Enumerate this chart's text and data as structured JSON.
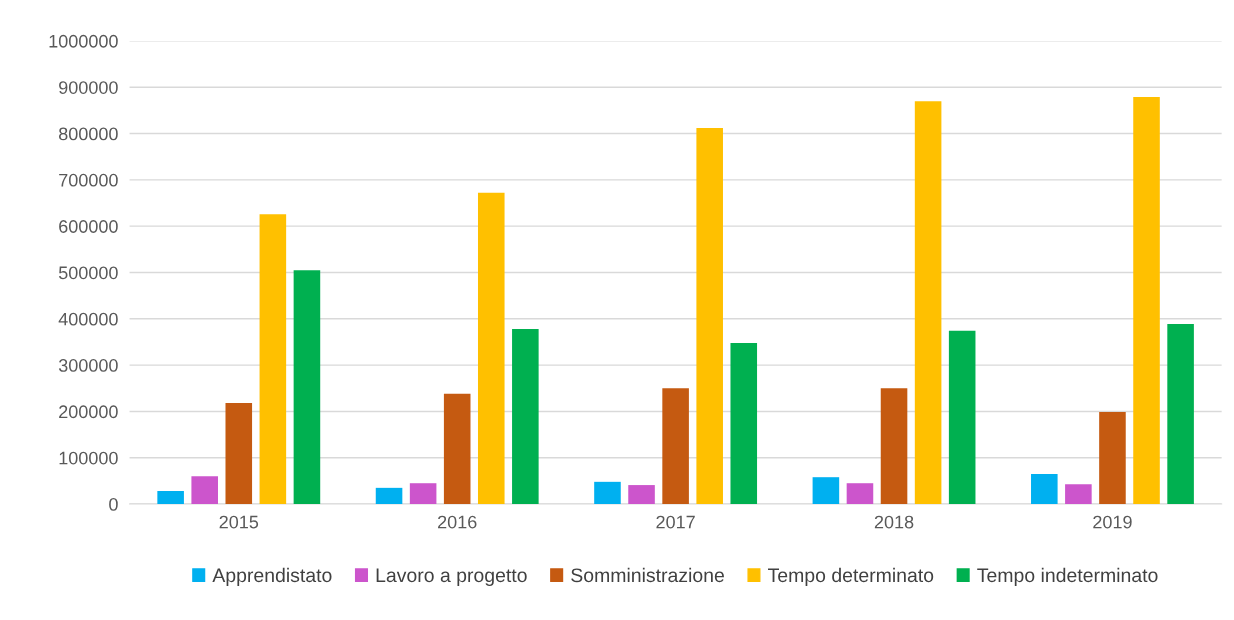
{
  "chart_data": {
    "type": "bar",
    "categories": [
      "2015",
      "2016",
      "2017",
      "2018",
      "2019"
    ],
    "series": [
      {
        "name": "Apprendistato",
        "color": "#00b0f0",
        "values": [
          28000,
          35000,
          48000,
          58000,
          65000
        ]
      },
      {
        "name": "Lavoro a progetto",
        "color": "#cc55cc",
        "values": [
          60000,
          45000,
          41000,
          45000,
          43000
        ]
      },
      {
        "name": "Somministrazione",
        "color": "#c55a11",
        "values": [
          218000,
          238000,
          250000,
          250000,
          199000
        ]
      },
      {
        "name": "Tempo determinato",
        "color": "#ffc000",
        "values": [
          626000,
          672000,
          812000,
          870000,
          879000
        ]
      },
      {
        "name": "Tempo indeterminato",
        "color": "#00b050",
        "values": [
          505000,
          378000,
          348000,
          374000,
          389000
        ]
      }
    ],
    "ylim": [
      0,
      1000000
    ],
    "yticks": [
      0,
      100000,
      200000,
      300000,
      400000,
      500000,
      600000,
      700000,
      800000,
      900000,
      1000000
    ],
    "grid": "y",
    "legend": "bottom"
  }
}
